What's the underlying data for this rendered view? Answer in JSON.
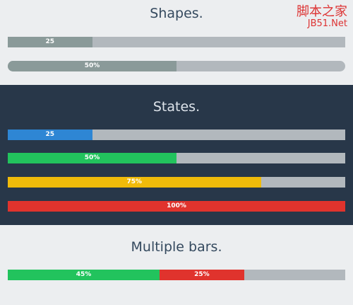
{
  "watermark": {
    "main": "脚本之家",
    "sub": "JB51.Net"
  },
  "sections": [
    {
      "title": "Shapes.",
      "bars": [
        {
          "rounded": false,
          "segments": [
            {
              "value": 25,
              "color": "#8a9a99"
            }
          ]
        },
        {
          "rounded": true,
          "segments": [
            {
              "value": 50,
              "label": "50%",
              "color": "#8a9a99"
            }
          ]
        }
      ]
    },
    {
      "title": "States.",
      "dark": true,
      "bars": [
        {
          "rounded": false,
          "segments": [
            {
              "value": 25,
              "color": "#2e86d4"
            }
          ]
        },
        {
          "rounded": false,
          "segments": [
            {
              "value": 50,
              "label": "50%",
              "color": "#22c35d"
            }
          ]
        },
        {
          "rounded": false,
          "segments": [
            {
              "value": 75,
              "label": "75%",
              "color": "#f0bb0a"
            }
          ]
        },
        {
          "rounded": false,
          "segments": [
            {
              "value": 100,
              "label": "100%",
              "color": "#e0332d"
            }
          ]
        }
      ]
    },
    {
      "title": "Multiple bars.",
      "bars": [
        {
          "rounded": false,
          "segments": [
            {
              "value": 45,
              "label": "45%",
              "color": "#22c35d"
            },
            {
              "value": 25,
              "label": "25%",
              "color": "#e0332d"
            }
          ]
        }
      ]
    }
  ]
}
